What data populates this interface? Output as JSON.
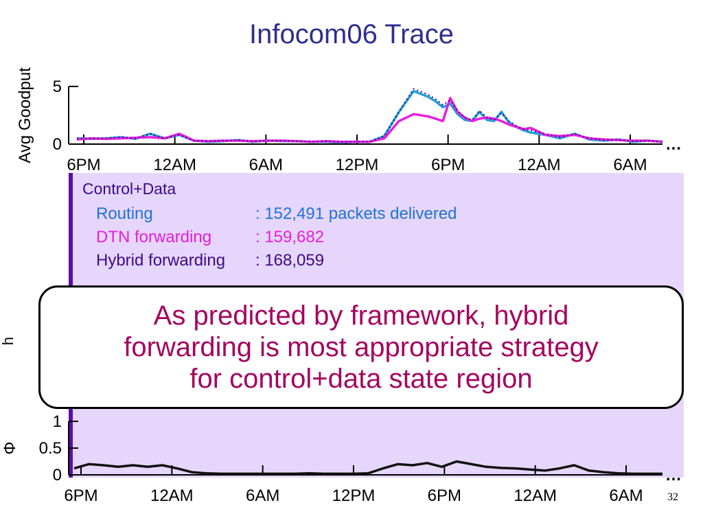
{
  "slide": {
    "title": "Infocom06 Trace",
    "slide_number": "32"
  },
  "panel": {
    "heading": "Control+Data",
    "results": [
      {
        "label": "Routing",
        "value": ": 152,491 packets delivered",
        "color": "#1e73d8"
      },
      {
        "label": "DTN forwarding",
        "value": ": 159,682",
        "color": "#e61ee0"
      },
      {
        "label": "Hybrid forwarding",
        "value": ": 168,059",
        "color": "#3a0a8a"
      }
    ],
    "background_color": "#e6d6fb",
    "accent_color": "#5b0fa6"
  },
  "callout": {
    "text_lines": [
      "As predicted by framework, hybrid",
      "forwarding is most appropriate strategy",
      "for control+data state region"
    ],
    "color": "#a4045e"
  },
  "partial_label": "h",
  "chart_data": [
    {
      "type": "line",
      "ylabel": "Avg Goodput",
      "xlabel": "",
      "x_tick_labels": [
        "6PM",
        "12AM",
        "6AM",
        "12PM",
        "6PM",
        "12AM",
        "6AM"
      ],
      "y_ticks": [
        "0",
        "5"
      ],
      "ylim": [
        0,
        5
      ],
      "xlim": [
        0,
        40
      ],
      "continuation": "…",
      "series": [
        {
          "color": "#22a0d6",
          "x": [
            0,
            1,
            2,
            3,
            4,
            5,
            6,
            7,
            8,
            9,
            10,
            11,
            12,
            13,
            14,
            15,
            16,
            17,
            18,
            19,
            20,
            21,
            22,
            23,
            24,
            24.5,
            25,
            25.5,
            26,
            26.5,
            27,
            27.5,
            28,
            28.5,
            29,
            29.5,
            30,
            30.5,
            31,
            32,
            33,
            34,
            35,
            36,
            37,
            38,
            39,
            40
          ],
          "y": [
            0.5,
            0.45,
            0.5,
            0.6,
            0.45,
            0.9,
            0.5,
            0.8,
            0.3,
            0.2,
            0.25,
            0.35,
            0.2,
            0.3,
            0.25,
            0.25,
            0.2,
            0.2,
            0.15,
            0.2,
            0.2,
            0.7,
            2.8,
            4.6,
            4.1,
            3.7,
            3.2,
            3.5,
            2.6,
            2.1,
            2.0,
            2.8,
            2.1,
            2.0,
            2.8,
            1.9,
            1.5,
            1.2,
            1.0,
            0.8,
            0.5,
            0.9,
            0.4,
            0.3,
            0.4,
            0.2,
            0.3,
            0.2
          ]
        },
        {
          "color": "#e61ee0",
          "x": [
            0,
            1,
            2,
            3,
            4,
            5,
            6,
            7,
            8,
            9,
            10,
            11,
            12,
            13,
            14,
            15,
            16,
            17,
            18,
            19,
            20,
            21,
            22,
            23,
            24,
            24.5,
            25,
            25.5,
            26,
            26.5,
            27,
            27.5,
            28,
            28.5,
            29,
            29.5,
            30,
            30.5,
            31,
            32,
            33,
            34,
            35,
            36,
            37,
            38,
            39,
            40
          ],
          "y": [
            0.4,
            0.5,
            0.45,
            0.5,
            0.55,
            0.6,
            0.5,
            0.9,
            0.3,
            0.25,
            0.3,
            0.3,
            0.25,
            0.3,
            0.3,
            0.25,
            0.2,
            0.25,
            0.2,
            0.2,
            0.2,
            0.5,
            2.0,
            2.6,
            2.4,
            2.2,
            2.0,
            4.0,
            2.8,
            2.3,
            2.0,
            2.2,
            2.3,
            2.2,
            2.0,
            1.7,
            1.5,
            1.3,
            1.4,
            0.8,
            0.7,
            0.8,
            0.5,
            0.4,
            0.35,
            0.3,
            0.3,
            0.2
          ]
        },
        {
          "color": "#3a0a8a",
          "dashed": true,
          "x": [
            0,
            1,
            2,
            3,
            4,
            5,
            6,
            7,
            8,
            9,
            10,
            11,
            12,
            13,
            14,
            15,
            16,
            17,
            18,
            19,
            20,
            21,
            22,
            23,
            24,
            24.5,
            25,
            25.5,
            26,
            26.5,
            27,
            27.5,
            28,
            28.5,
            29,
            29.5,
            30,
            30.5,
            31,
            32,
            33,
            34,
            35,
            36,
            37,
            38,
            39,
            40
          ],
          "y": [
            0.5,
            0.5,
            0.5,
            0.6,
            0.5,
            0.9,
            0.5,
            0.8,
            0.3,
            0.25,
            0.3,
            0.35,
            0.25,
            0.3,
            0.3,
            0.25,
            0.2,
            0.25,
            0.2,
            0.2,
            0.2,
            0.7,
            2.8,
            4.8,
            4.3,
            3.9,
            3.4,
            3.8,
            2.9,
            2.3,
            2.1,
            2.9,
            2.3,
            2.1,
            2.7,
            2.0,
            1.6,
            1.3,
            1.2,
            0.9,
            0.6,
            0.9,
            0.5,
            0.35,
            0.4,
            0.25,
            0.3,
            0.2
          ]
        }
      ]
    },
    {
      "type": "line",
      "ylabel": "Φ",
      "xlabel": "",
      "x_tick_labels": [
        "6PM",
        "12AM",
        "6AM",
        "12PM",
        "6PM",
        "12AM",
        "6AM"
      ],
      "y_ticks": [
        "0",
        "0.5",
        "1"
      ],
      "ylim": [
        0,
        1
      ],
      "xlim": [
        0,
        40
      ],
      "continuation": "…",
      "series": [
        {
          "color": "#111111",
          "x": [
            0,
            1,
            2,
            3,
            4,
            5,
            6,
            7,
            8,
            9,
            10,
            11,
            12,
            13,
            14,
            15,
            16,
            17,
            18,
            19,
            20,
            21,
            22,
            23,
            24,
            25,
            26,
            27,
            28,
            29,
            30,
            31,
            32,
            33,
            34,
            35,
            36,
            37,
            38,
            39,
            40
          ],
          "y": [
            0.12,
            0.2,
            0.18,
            0.15,
            0.18,
            0.15,
            0.18,
            0.12,
            0.05,
            0.03,
            0.02,
            0.02,
            0.02,
            0.02,
            0.02,
            0.02,
            0.03,
            0.02,
            0.02,
            0.02,
            0.03,
            0.12,
            0.2,
            0.18,
            0.22,
            0.15,
            0.25,
            0.2,
            0.15,
            0.13,
            0.12,
            0.1,
            0.08,
            0.12,
            0.18,
            0.08,
            0.05,
            0.03,
            0.02,
            0.02,
            0.02
          ]
        }
      ]
    }
  ]
}
